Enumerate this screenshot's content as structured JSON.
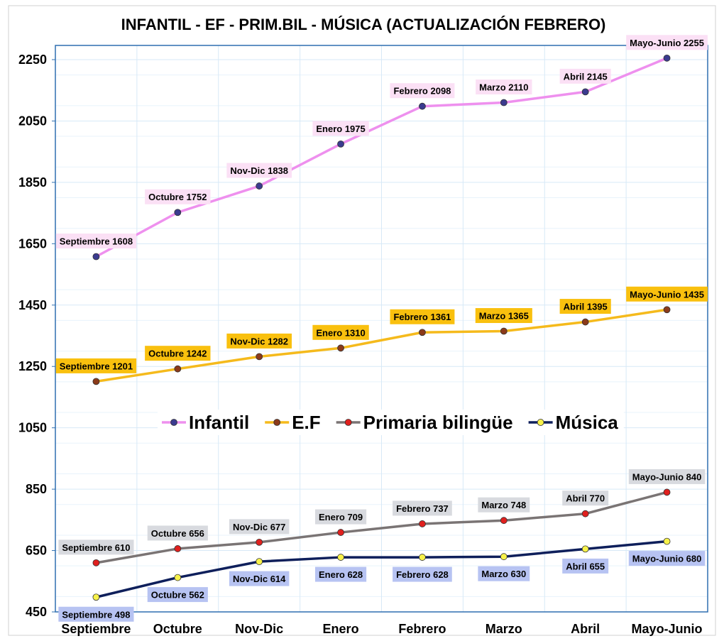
{
  "chart_data": {
    "type": "line",
    "title": "INFANTIL - EF - PRIM.BIL - MÚSICA (ACTUALIZACIÓN FEBRERO)",
    "xlabel": "",
    "ylabel": "",
    "categories": [
      "Septiembre",
      "Octubre",
      "Nov-Dic",
      "Enero",
      "Febrero",
      "Marzo",
      "Abril",
      "Mayo-Junio"
    ],
    "yticks": [
      450,
      650,
      850,
      1050,
      1250,
      1450,
      1650,
      1850,
      2050,
      2250
    ],
    "ylim": [
      450,
      2330
    ],
    "grid": true,
    "legend_position": "center",
    "series": [
      {
        "name": "Infantil",
        "values": [
          1608,
          1752,
          1838,
          1975,
          2098,
          2110,
          2145,
          2255
        ],
        "labels": [
          "Septiembre 1608",
          "Octubre 1752",
          "Nov-Dic 1838",
          "Enero 1975",
          "Febrero 2098",
          "Marzo 2110",
          "Abril 2145",
          "Mayo-Junio 2255"
        ],
        "line_color": "#EE90EE",
        "marker_color": "#3B3B8F",
        "label_bg": "#FBE0F5",
        "label_pos": "above"
      },
      {
        "name": "E.F",
        "values": [
          1201,
          1242,
          1282,
          1310,
          1361,
          1365,
          1395,
          1435
        ],
        "labels": [
          "Septiembre 1201",
          "Octubre 1242",
          "Nov-Dic 1282",
          "Enero 1310",
          "Febrero 1361",
          "Marzo 1365",
          "Abril 1395",
          "Mayo-Junio 1435"
        ],
        "line_color": "#F5BA1C",
        "marker_color": "#8B3A1A",
        "label_bg": "#F9C00E",
        "label_pos": "above"
      },
      {
        "name": "Primaria bilingüe",
        "values": [
          610,
          656,
          677,
          709,
          737,
          748,
          770,
          840
        ],
        "labels": [
          "Septiembre 610",
          "Octubre 656",
          "Nov-Dic 677",
          "Enero 709",
          "Febrero 737",
          "Marzo 748",
          "Abril 770",
          "Mayo-Junio 840"
        ],
        "line_color": "#7A7474",
        "marker_color": "#E0201E",
        "label_bg": "#D8DADF",
        "label_pos": "above"
      },
      {
        "name": "Música",
        "values": [
          498,
          562,
          614,
          628,
          628,
          630,
          655,
          680
        ],
        "labels": [
          "Septiembre 498",
          "Octubre 562",
          "Nov-Dic 614",
          "Enero 628",
          "Febrero 628",
          "Marzo 630",
          "Abril 655",
          "Mayo-Junio 680"
        ],
        "line_color": "#0E1F5B",
        "marker_color": "#F7F24A",
        "label_bg": "#B7C3F2",
        "label_pos": "below"
      }
    ]
  }
}
